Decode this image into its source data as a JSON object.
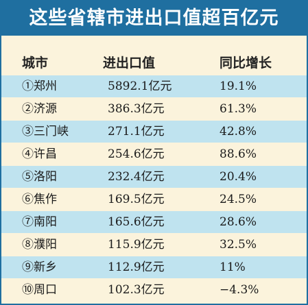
{
  "title": "这些省辖市进出口值超百亿元",
  "headers": {
    "city": "城市",
    "value": "进出口值",
    "growth": "同比增长"
  },
  "rows": [
    {
      "city": "①郑州",
      "value": "5892.1亿元",
      "growth": "19.1%"
    },
    {
      "city": "②济源",
      "value": "386.3亿元",
      "growth": "61.3%"
    },
    {
      "city": "③三门峡",
      "value": "271.1亿元",
      "growth": "42.8%"
    },
    {
      "city": "④许昌",
      "value": "254.6亿元",
      "growth": "88.6%"
    },
    {
      "city": "⑤洛阳",
      "value": "232.4亿元",
      "growth": "20.4%"
    },
    {
      "city": "⑥焦作",
      "value": "169.5亿元",
      "growth": "24.5%"
    },
    {
      "city": "⑦南阳",
      "value": "165.6亿元",
      "growth": "28.6%"
    },
    {
      "city": "⑧濮阳",
      "value": "115.9亿元",
      "growth": "32.5%"
    },
    {
      "city": "⑨新乡",
      "value": "112.9亿元",
      "growth": "11%"
    },
    {
      "city": "⑩周口",
      "value": "102.3亿元",
      "growth": "−4.3%"
    }
  ],
  "colors": {
    "title_bg": "#1f6fa0",
    "stripe": "#bfe3ef",
    "background": "#fbf3dc"
  }
}
